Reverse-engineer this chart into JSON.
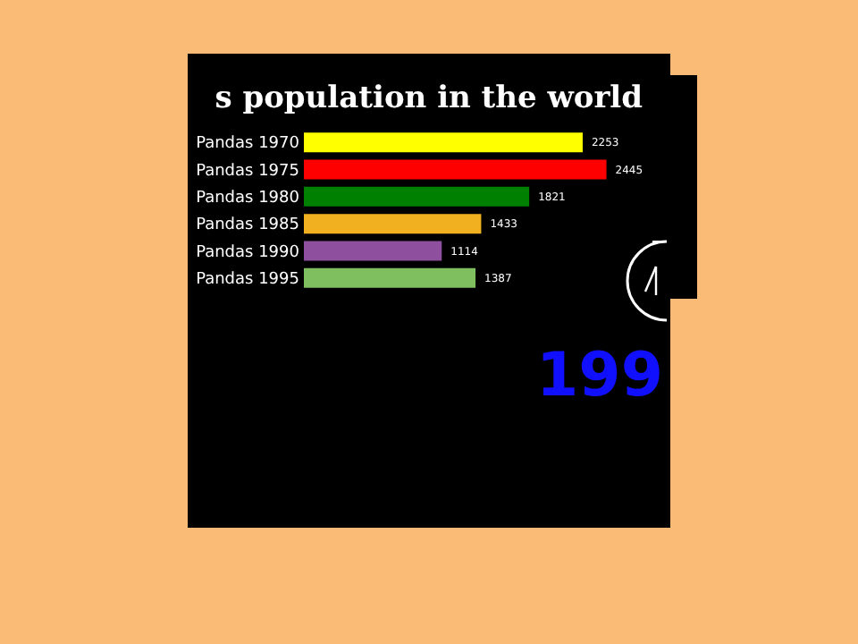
{
  "chart_data": {
    "type": "bar",
    "orientation": "horizontal",
    "title": "s population in the world",
    "categories": [
      "Pandas 1970",
      "Pandas 1975",
      "Pandas 1980",
      "Pandas 1985",
      "Pandas 1990",
      "Pandas 1995"
    ],
    "values": [
      2253,
      2445,
      1821,
      1433,
      1114,
      1387
    ],
    "colors": [
      "#ffff00",
      "#ff0000",
      "#008000",
      "#f0b020",
      "#8e4f9e",
      "#7fbf5f"
    ],
    "data_labels": true,
    "annotations": [
      "199"
    ]
  }
}
